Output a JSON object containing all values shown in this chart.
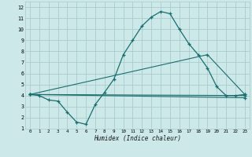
{
  "xlabel": "Humidex (Indice chaleur)",
  "bg_color": "#cce8e8",
  "grid_color": "#aacccc",
  "line_color": "#1a6e6e",
  "xlim": [
    -0.5,
    23.5
  ],
  "ylim": [
    1,
    12.5
  ],
  "xticks": [
    0,
    1,
    2,
    3,
    4,
    5,
    6,
    7,
    8,
    9,
    10,
    11,
    12,
    13,
    14,
    15,
    16,
    17,
    18,
    19,
    20,
    21,
    22,
    23
  ],
  "yticks": [
    1,
    2,
    3,
    4,
    5,
    6,
    7,
    8,
    9,
    10,
    11,
    12
  ],
  "series1_x": [
    0,
    1,
    2,
    3,
    4,
    5,
    6,
    7,
    8,
    9,
    10,
    11,
    12,
    13,
    14,
    15,
    16,
    17,
    18,
    19,
    20,
    21,
    22,
    23
  ],
  "series1_y": [
    4.1,
    4.0,
    3.6,
    3.5,
    2.5,
    1.6,
    1.4,
    3.2,
    4.3,
    5.5,
    7.7,
    9.0,
    10.3,
    11.1,
    11.6,
    11.4,
    10.0,
    8.7,
    7.7,
    6.5,
    4.8,
    4.0,
    4.0,
    4.1
  ],
  "series2_x": [
    0,
    23
  ],
  "series2_y": [
    4.1,
    4.0
  ],
  "series3_x": [
    0,
    19,
    23
  ],
  "series3_y": [
    4.1,
    7.7,
    4.1
  ],
  "series4_x": [
    0,
    23
  ],
  "series4_y": [
    4.1,
    3.8
  ]
}
